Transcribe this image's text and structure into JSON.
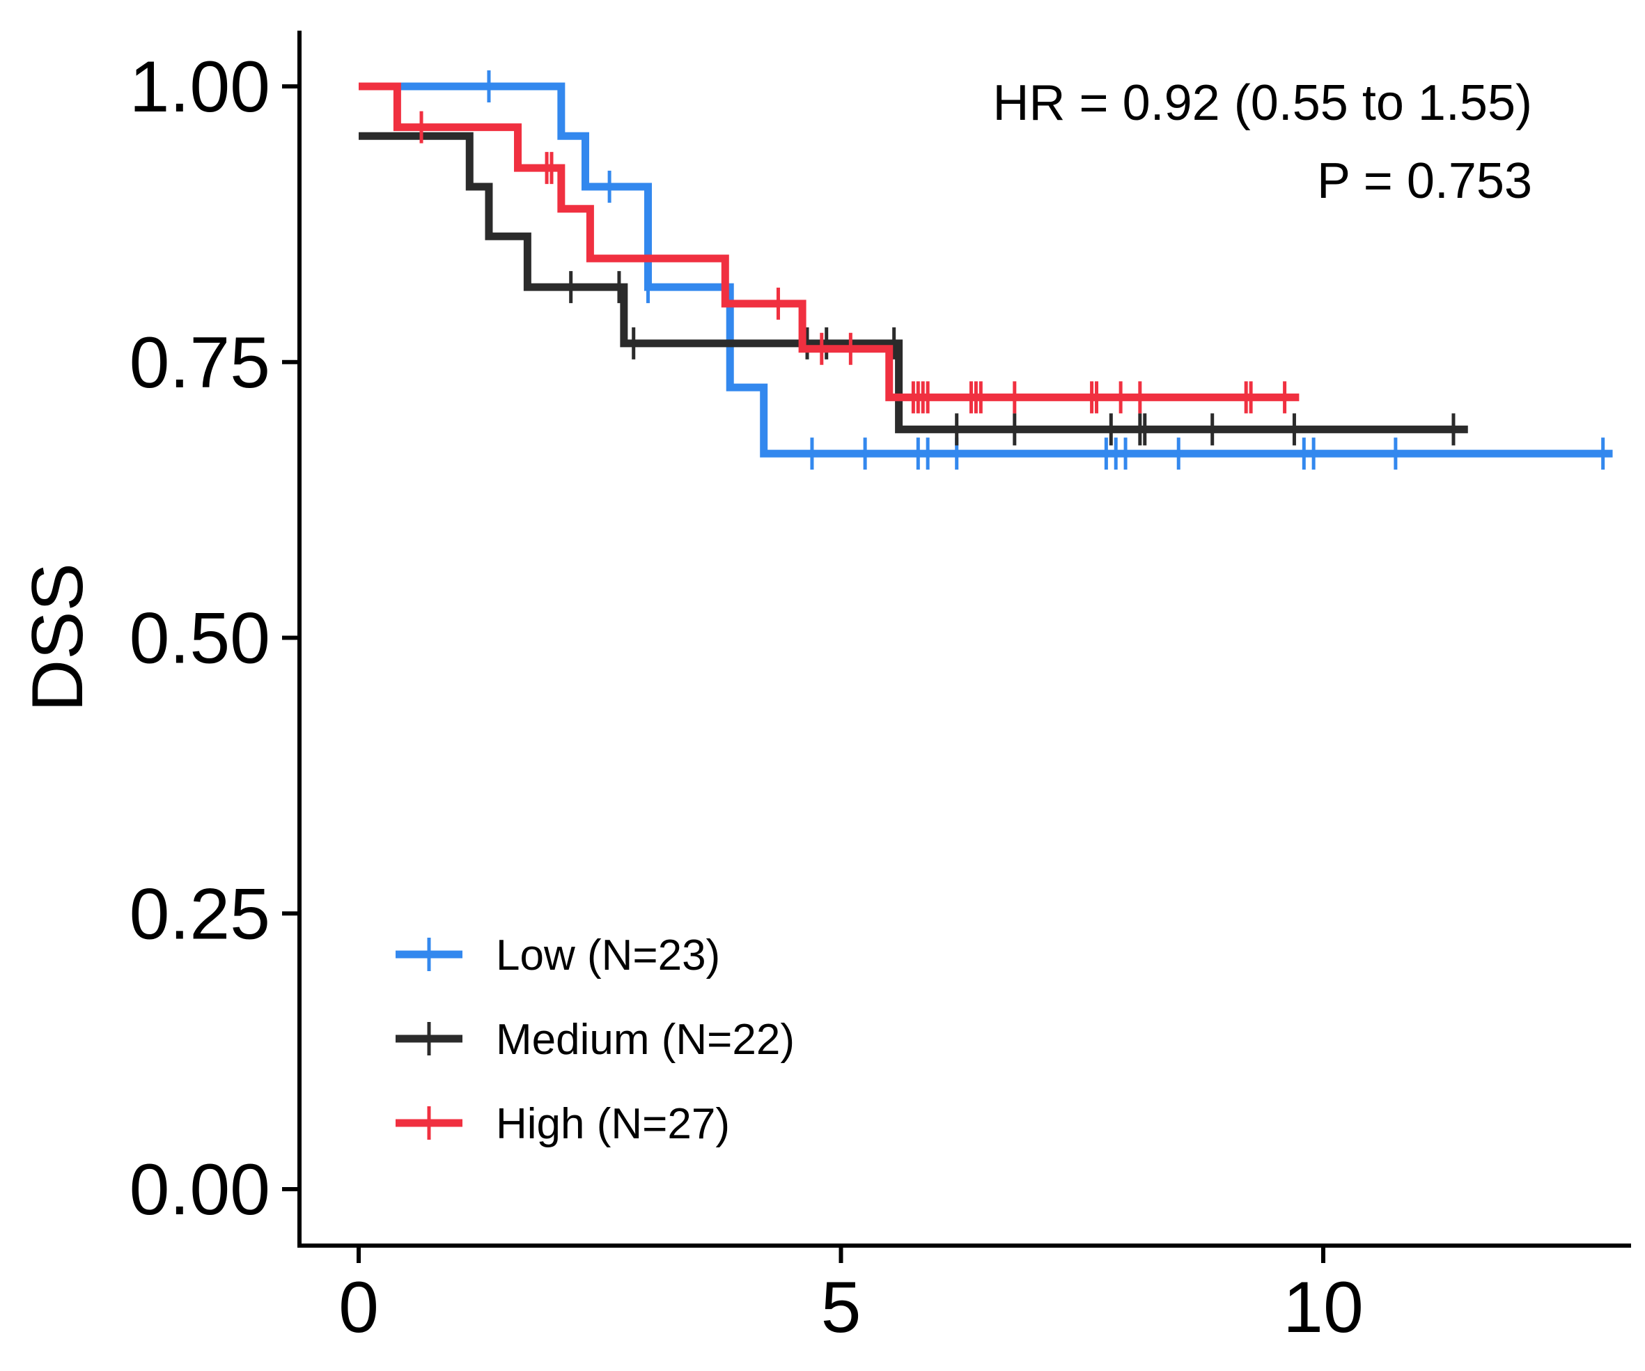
{
  "chart_data": {
    "type": "line",
    "xlabel": "",
    "ylabel": "DSS",
    "xlim": [
      -0.6,
      13.1
    ],
    "ylim": [
      -0.05,
      1.05
    ],
    "x_ticks": [
      0,
      5,
      10
    ],
    "x_tick_labels": [
      "0",
      "5",
      "10"
    ],
    "y_ticks": [
      0,
      0.25,
      0.5,
      0.75,
      1.0
    ],
    "y_tick_labels": [
      "0.00",
      "0.25",
      "0.50",
      "0.75",
      "1.00"
    ],
    "grid": false,
    "legend": {
      "position": "bottom-left"
    },
    "annotations": [
      "HR = 0.92 (0.55 to 1.55)",
      "P = 0.753"
    ],
    "series": [
      {
        "name": "Low (N=23)",
        "color": "#3388ee",
        "steps": [
          [
            0,
            1.0
          ],
          [
            2.1,
            0.955
          ],
          [
            2.35,
            0.909
          ],
          [
            3.0,
            0.818
          ],
          [
            3.85,
            0.727
          ],
          [
            4.2,
            0.667
          ]
        ],
        "end": 13.0,
        "censor_times": [
          1.35,
          2.6,
          3.0,
          4.7,
          5.25,
          5.8,
          5.9,
          6.2,
          7.75,
          7.85,
          7.95,
          8.5,
          9.8,
          9.9,
          10.75,
          12.9
        ]
      },
      {
        "name": "Medium (N=22)",
        "color": "#2b2b2b",
        "steps": [
          [
            0,
            0.955
          ],
          [
            1.15,
            0.909
          ],
          [
            1.35,
            0.864
          ],
          [
            1.75,
            0.818
          ],
          [
            2.75,
            0.767
          ],
          [
            5.6,
            0.689
          ]
        ],
        "end": 11.5,
        "censor_times": [
          2.2,
          2.7,
          2.85,
          4.65,
          4.85,
          5.55,
          6.2,
          6.8,
          7.8,
          8.1,
          8.15,
          8.85,
          9.7,
          11.35
        ]
      },
      {
        "name": "High (N=27)",
        "color": "#f03040",
        "steps": [
          [
            0,
            1.0
          ],
          [
            0.4,
            0.963
          ],
          [
            1.65,
            0.926
          ],
          [
            2.1,
            0.889
          ],
          [
            2.4,
            0.844
          ],
          [
            3.8,
            0.803
          ],
          [
            4.6,
            0.762
          ],
          [
            5.5,
            0.718
          ]
        ],
        "end": 9.75,
        "censor_times": [
          0.65,
          1.95,
          2.0,
          4.35,
          4.8,
          5.1,
          5.75,
          5.8,
          5.85,
          5.9,
          6.35,
          6.4,
          6.45,
          6.8,
          7.6,
          7.65,
          7.9,
          8.1,
          9.2,
          9.25,
          9.6
        ]
      }
    ]
  }
}
